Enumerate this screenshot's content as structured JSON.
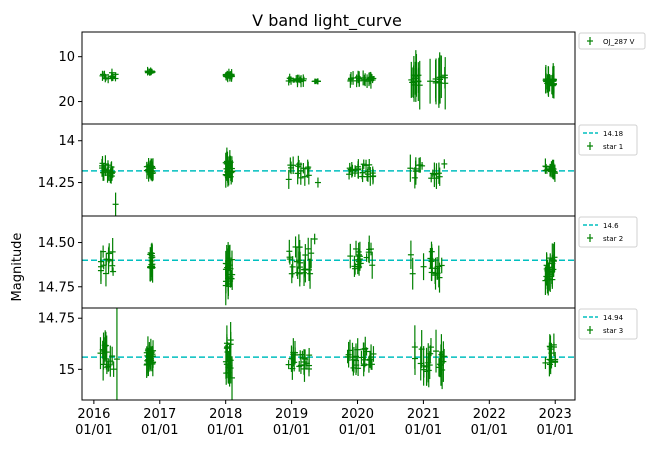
{
  "title": "V band light_curve",
  "ylabel": "Magnitude",
  "colors": {
    "points": "#008000",
    "reference": "#00bfbf",
    "frame": "#000000"
  },
  "x_ticks": [
    {
      "year": "2016",
      "date": "01/01"
    },
    {
      "year": "2017",
      "date": "01/01"
    },
    {
      "year": "2018",
      "date": "01/01"
    },
    {
      "year": "2019",
      "date": "01/01"
    },
    {
      "year": "2020",
      "date": "01/01"
    },
    {
      "year": "2021",
      "date": "01/01"
    },
    {
      "year": "2022",
      "date": "01/01"
    },
    {
      "year": "2023",
      "date": "01/01"
    }
  ],
  "chart_data": [
    {
      "type": "scatter",
      "errorbars": true,
      "series": [
        {
          "name": "OJ_287 V",
          "marker": "+",
          "color": "#008000"
        }
      ],
      "ylim": [
        25,
        4.5
      ],
      "inverted_y": true,
      "yticks": [
        10,
        20
      ],
      "clusters": [
        {
          "x": [
            2016.1,
            2016.35
          ],
          "y": [
            13.5,
            15.0
          ],
          "err": 1.0
        },
        {
          "x": [
            2016.8,
            2016.9
          ],
          "y": [
            13.2,
            13.6
          ],
          "err": 0.8
        },
        {
          "x": [
            2018.0,
            2018.1
          ],
          "y": [
            13.8,
            14.5
          ],
          "err": 1.0
        },
        {
          "x": [
            2018.95,
            2019.2
          ],
          "y": [
            14.8,
            15.6
          ],
          "err": 1.2
        },
        {
          "x": [
            2019.35,
            2019.4
          ],
          "y": [
            15.5,
            15.5
          ],
          "err": 0.6
        },
        {
          "x": [
            2019.85,
            2020.25
          ],
          "y": [
            14.5,
            15.5
          ],
          "err": 1.5
        },
        {
          "x": [
            2020.8,
            2021.35
          ],
          "y": [
            14.0,
            16.5
          ],
          "err": 5.0
        },
        {
          "x": [
            2022.85,
            2023.0
          ],
          "y": [
            15.0,
            16.5
          ],
          "err": 3.0
        }
      ]
    },
    {
      "type": "scatter",
      "errorbars": true,
      "series": [
        {
          "name": "star 1",
          "marker": "+",
          "color": "#008000"
        }
      ],
      "reference_line": {
        "value": 14.18,
        "label": "14.18"
      },
      "ylim": [
        14.45,
        13.9
      ],
      "inverted_y": true,
      "yticks": [
        14.0,
        14.25
      ],
      "clusters": [
        {
          "x": [
            2016.1,
            2016.3
          ],
          "y": [
            14.13,
            14.23
          ],
          "err": 0.06
        },
        {
          "x": [
            2016.8,
            2016.9
          ],
          "y": [
            14.15,
            14.2
          ],
          "err": 0.05
        },
        {
          "x": [
            2018.0,
            2018.1
          ],
          "y": [
            14.12,
            14.22
          ],
          "err": 0.07
        },
        {
          "x": [
            2018.95,
            2019.3
          ],
          "y": [
            14.14,
            14.24
          ],
          "err": 0.06
        },
        {
          "x": [
            2019.85,
            2020.25
          ],
          "y": [
            14.14,
            14.22
          ],
          "err": 0.05
        },
        {
          "x": [
            2020.8,
            2021.35
          ],
          "y": [
            14.13,
            14.23
          ],
          "err": 0.07
        },
        {
          "x": [
            2022.85,
            2023.0
          ],
          "y": [
            14.15,
            14.2
          ],
          "err": 0.05
        }
      ],
      "outliers": [
        {
          "x": 2016.33,
          "y": 14.38,
          "err": 0.07
        },
        {
          "x": 2019.4,
          "y": 14.25,
          "err": 0.03
        }
      ]
    },
    {
      "type": "scatter",
      "errorbars": true,
      "series": [
        {
          "name": "star 2",
          "marker": "+",
          "color": "#008000"
        }
      ],
      "reference_line": {
        "value": 14.6,
        "label": "14.6"
      },
      "ylim": [
        14.87,
        14.35
      ],
      "inverted_y": true,
      "yticks": [
        14.5,
        14.75
      ],
      "clusters": [
        {
          "x": [
            2016.1,
            2016.3
          ],
          "y": [
            14.55,
            14.68
          ],
          "err": 0.07
        },
        {
          "x": [
            2016.85,
            2016.9
          ],
          "y": [
            14.55,
            14.65
          ],
          "err": 0.08
        },
        {
          "x": [
            2018.0,
            2018.1
          ],
          "y": [
            14.58,
            14.75
          ],
          "err": 0.1
        },
        {
          "x": [
            2018.95,
            2019.3
          ],
          "y": [
            14.52,
            14.68
          ],
          "err": 0.08
        },
        {
          "x": [
            2019.85,
            2020.25
          ],
          "y": [
            14.52,
            14.65
          ],
          "err": 0.07
        },
        {
          "x": [
            2020.8,
            2021.35
          ],
          "y": [
            14.55,
            14.7
          ],
          "err": 0.1
        },
        {
          "x": [
            2022.85,
            2023.0
          ],
          "y": [
            14.58,
            14.72
          ],
          "err": 0.08
        }
      ],
      "outliers": [
        {
          "x": 2019.35,
          "y": 14.48,
          "err": 0.03
        }
      ]
    },
    {
      "type": "scatter",
      "errorbars": true,
      "series": [
        {
          "name": "star 3",
          "marker": "+",
          "color": "#008000"
        }
      ],
      "reference_line": {
        "value": 14.94,
        "label": "14.94"
      },
      "ylim": [
        15.15,
        14.7
      ],
      "inverted_y": true,
      "yticks": [
        14.75,
        15.0
      ],
      "clusters": [
        {
          "x": [
            2016.1,
            2016.3
          ],
          "y": [
            14.88,
            15.0
          ],
          "err": 0.08
        },
        {
          "x": [
            2016.8,
            2016.9
          ],
          "y": [
            14.9,
            14.98
          ],
          "err": 0.06
        },
        {
          "x": [
            2018.0,
            2018.1
          ],
          "y": [
            14.85,
            15.05
          ],
          "err": 0.1
        },
        {
          "x": [
            2018.95,
            2019.3
          ],
          "y": [
            14.9,
            15.0
          ],
          "err": 0.06
        },
        {
          "x": [
            2019.85,
            2020.25
          ],
          "y": [
            14.88,
            15.0
          ],
          "err": 0.06
        },
        {
          "x": [
            2020.8,
            2021.35
          ],
          "y": [
            14.88,
            15.02
          ],
          "err": 0.09
        },
        {
          "x": [
            2022.85,
            2023.0
          ],
          "y": [
            14.88,
            14.98
          ],
          "err": 0.07
        }
      ],
      "outliers": [
        {
          "x": 2016.35,
          "y": 14.95,
          "err": 0.25
        }
      ]
    }
  ]
}
